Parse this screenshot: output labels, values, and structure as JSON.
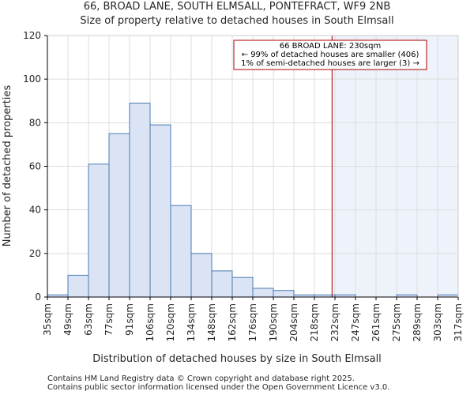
{
  "chart_data": {
    "type": "bar",
    "title": "66, BROAD LANE, SOUTH ELMSALL, PONTEFRACT, WF9 2NB",
    "subtitle": "Size of property relative to detached houses in South Elmsall",
    "xlabel": "Distribution of detached houses by size in South Elmsall",
    "ylabel": "Number of detached properties",
    "ylim": [
      0,
      120
    ],
    "yticks": [
      0,
      20,
      40,
      60,
      80,
      100,
      120
    ],
    "bin_edges": [
      35,
      49,
      63,
      77,
      91,
      106,
      120,
      134,
      148,
      162,
      176,
      190,
      204,
      218,
      232,
      247,
      261,
      275,
      289,
      303,
      317
    ],
    "bin_labels": [
      "35sqm",
      "49sqm",
      "63sqm",
      "77sqm",
      "91sqm",
      "106sqm",
      "120sqm",
      "134sqm",
      "148sqm",
      "162sqm",
      "176sqm",
      "190sqm",
      "204sqm",
      "218sqm",
      "232sqm",
      "247sqm",
      "261sqm",
      "275sqm",
      "289sqm",
      "303sqm",
      "317sqm"
    ],
    "values": [
      1,
      10,
      61,
      75,
      89,
      79,
      42,
      20,
      12,
      9,
      4,
      3,
      1,
      1,
      1,
      0,
      0,
      1,
      0,
      1
    ],
    "grid": true,
    "marker": {
      "value": 230,
      "unit": "sqm",
      "color": "#aa0000",
      "shade_color": "#eef2fa",
      "annotation": [
        "66 BROAD LANE: 230sqm",
        "← 99% of detached houses are smaller (406)",
        "1% of semi-detached houses are larger (3) →"
      ]
    },
    "bar_fill": "#dae4f4",
    "bar_edge": "#4a7ab5"
  },
  "footer": [
    "Contains HM Land Registry data © Crown copyright and database right 2025.",
    "Contains public sector information licensed under the Open Government Licence v3.0."
  ]
}
